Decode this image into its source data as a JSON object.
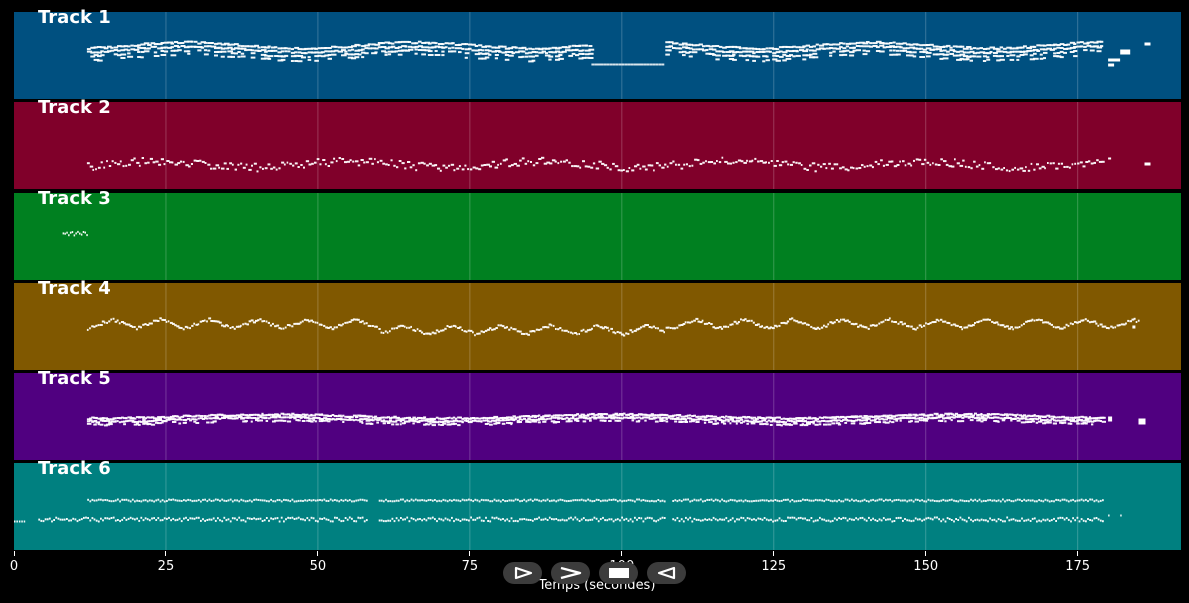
{
  "chart_data": {
    "type": "piano-roll",
    "xlabel": "Temps (secondes)",
    "xlim": [
      0,
      192
    ],
    "xticks": [
      0,
      25,
      50,
      75,
      100,
      125,
      150,
      175
    ],
    "grid": true,
    "tracks": [
      {
        "name": "Track 1",
        "color": "#005080",
        "note_range": [
          12,
          192
        ],
        "gaps": [
          [
            95,
            107
          ]
        ],
        "style": "dense-chords",
        "ending_blocks": true
      },
      {
        "name": "Track 2",
        "color": "#80002a",
        "note_range": [
          12,
          192
        ],
        "gaps": [],
        "style": "sparse-melody",
        "ending_blocks": true
      },
      {
        "name": "Track 3",
        "color": "#008020",
        "note_range": [
          8,
          12
        ],
        "gaps": [],
        "style": "short-phrase",
        "ending_blocks": false
      },
      {
        "name": "Track 4",
        "color": "#805800",
        "note_range": [
          12,
          187
        ],
        "gaps": [],
        "style": "zigzag-melody",
        "ending_blocks": false
      },
      {
        "name": "Track 5",
        "color": "#500080",
        "note_range": [
          12,
          192
        ],
        "gaps": [],
        "style": "dense-band",
        "ending_blocks": true
      },
      {
        "name": "Track 6",
        "color": "#008080",
        "note_range": [
          0,
          184
        ],
        "gaps": [
          [
            58,
            60
          ],
          [
            107,
            108
          ]
        ],
        "style": "two-lines",
        "ending_blocks": false
      }
    ]
  },
  "transport": {
    "buttons": [
      {
        "name": "play-button",
        "icon": "play-icon"
      },
      {
        "name": "fast-forward-button",
        "icon": "fast-forward-icon"
      },
      {
        "name": "stop-button",
        "icon": "stop-icon"
      },
      {
        "name": "rewind-button",
        "icon": "rewind-icon"
      }
    ]
  }
}
